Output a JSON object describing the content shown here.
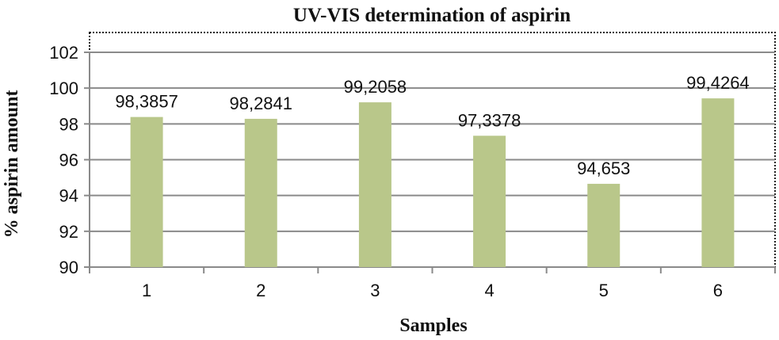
{
  "chart_data": {
    "type": "bar",
    "title": "UV-VIS determination of aspirin",
    "xlabel": "Samples",
    "ylabel": "% aspirin amount",
    "categories": [
      "1",
      "2",
      "3",
      "4",
      "5",
      "6"
    ],
    "values": [
      98.3857,
      98.2841,
      99.2058,
      97.3378,
      94.653,
      99.4264
    ],
    "data_labels": [
      "98,3857",
      "98,2841",
      "99,2058",
      "97,3378",
      "94,653",
      "99,4264"
    ],
    "ylim": [
      90,
      102
    ],
    "yticks": [
      90,
      92,
      94,
      96,
      98,
      100,
      102
    ],
    "grid": true,
    "legend": "none",
    "colors": {
      "bar": "#b9c78a",
      "grid": "#8a8a8a",
      "axis": "#8a8a8a",
      "border": "#222222"
    }
  }
}
